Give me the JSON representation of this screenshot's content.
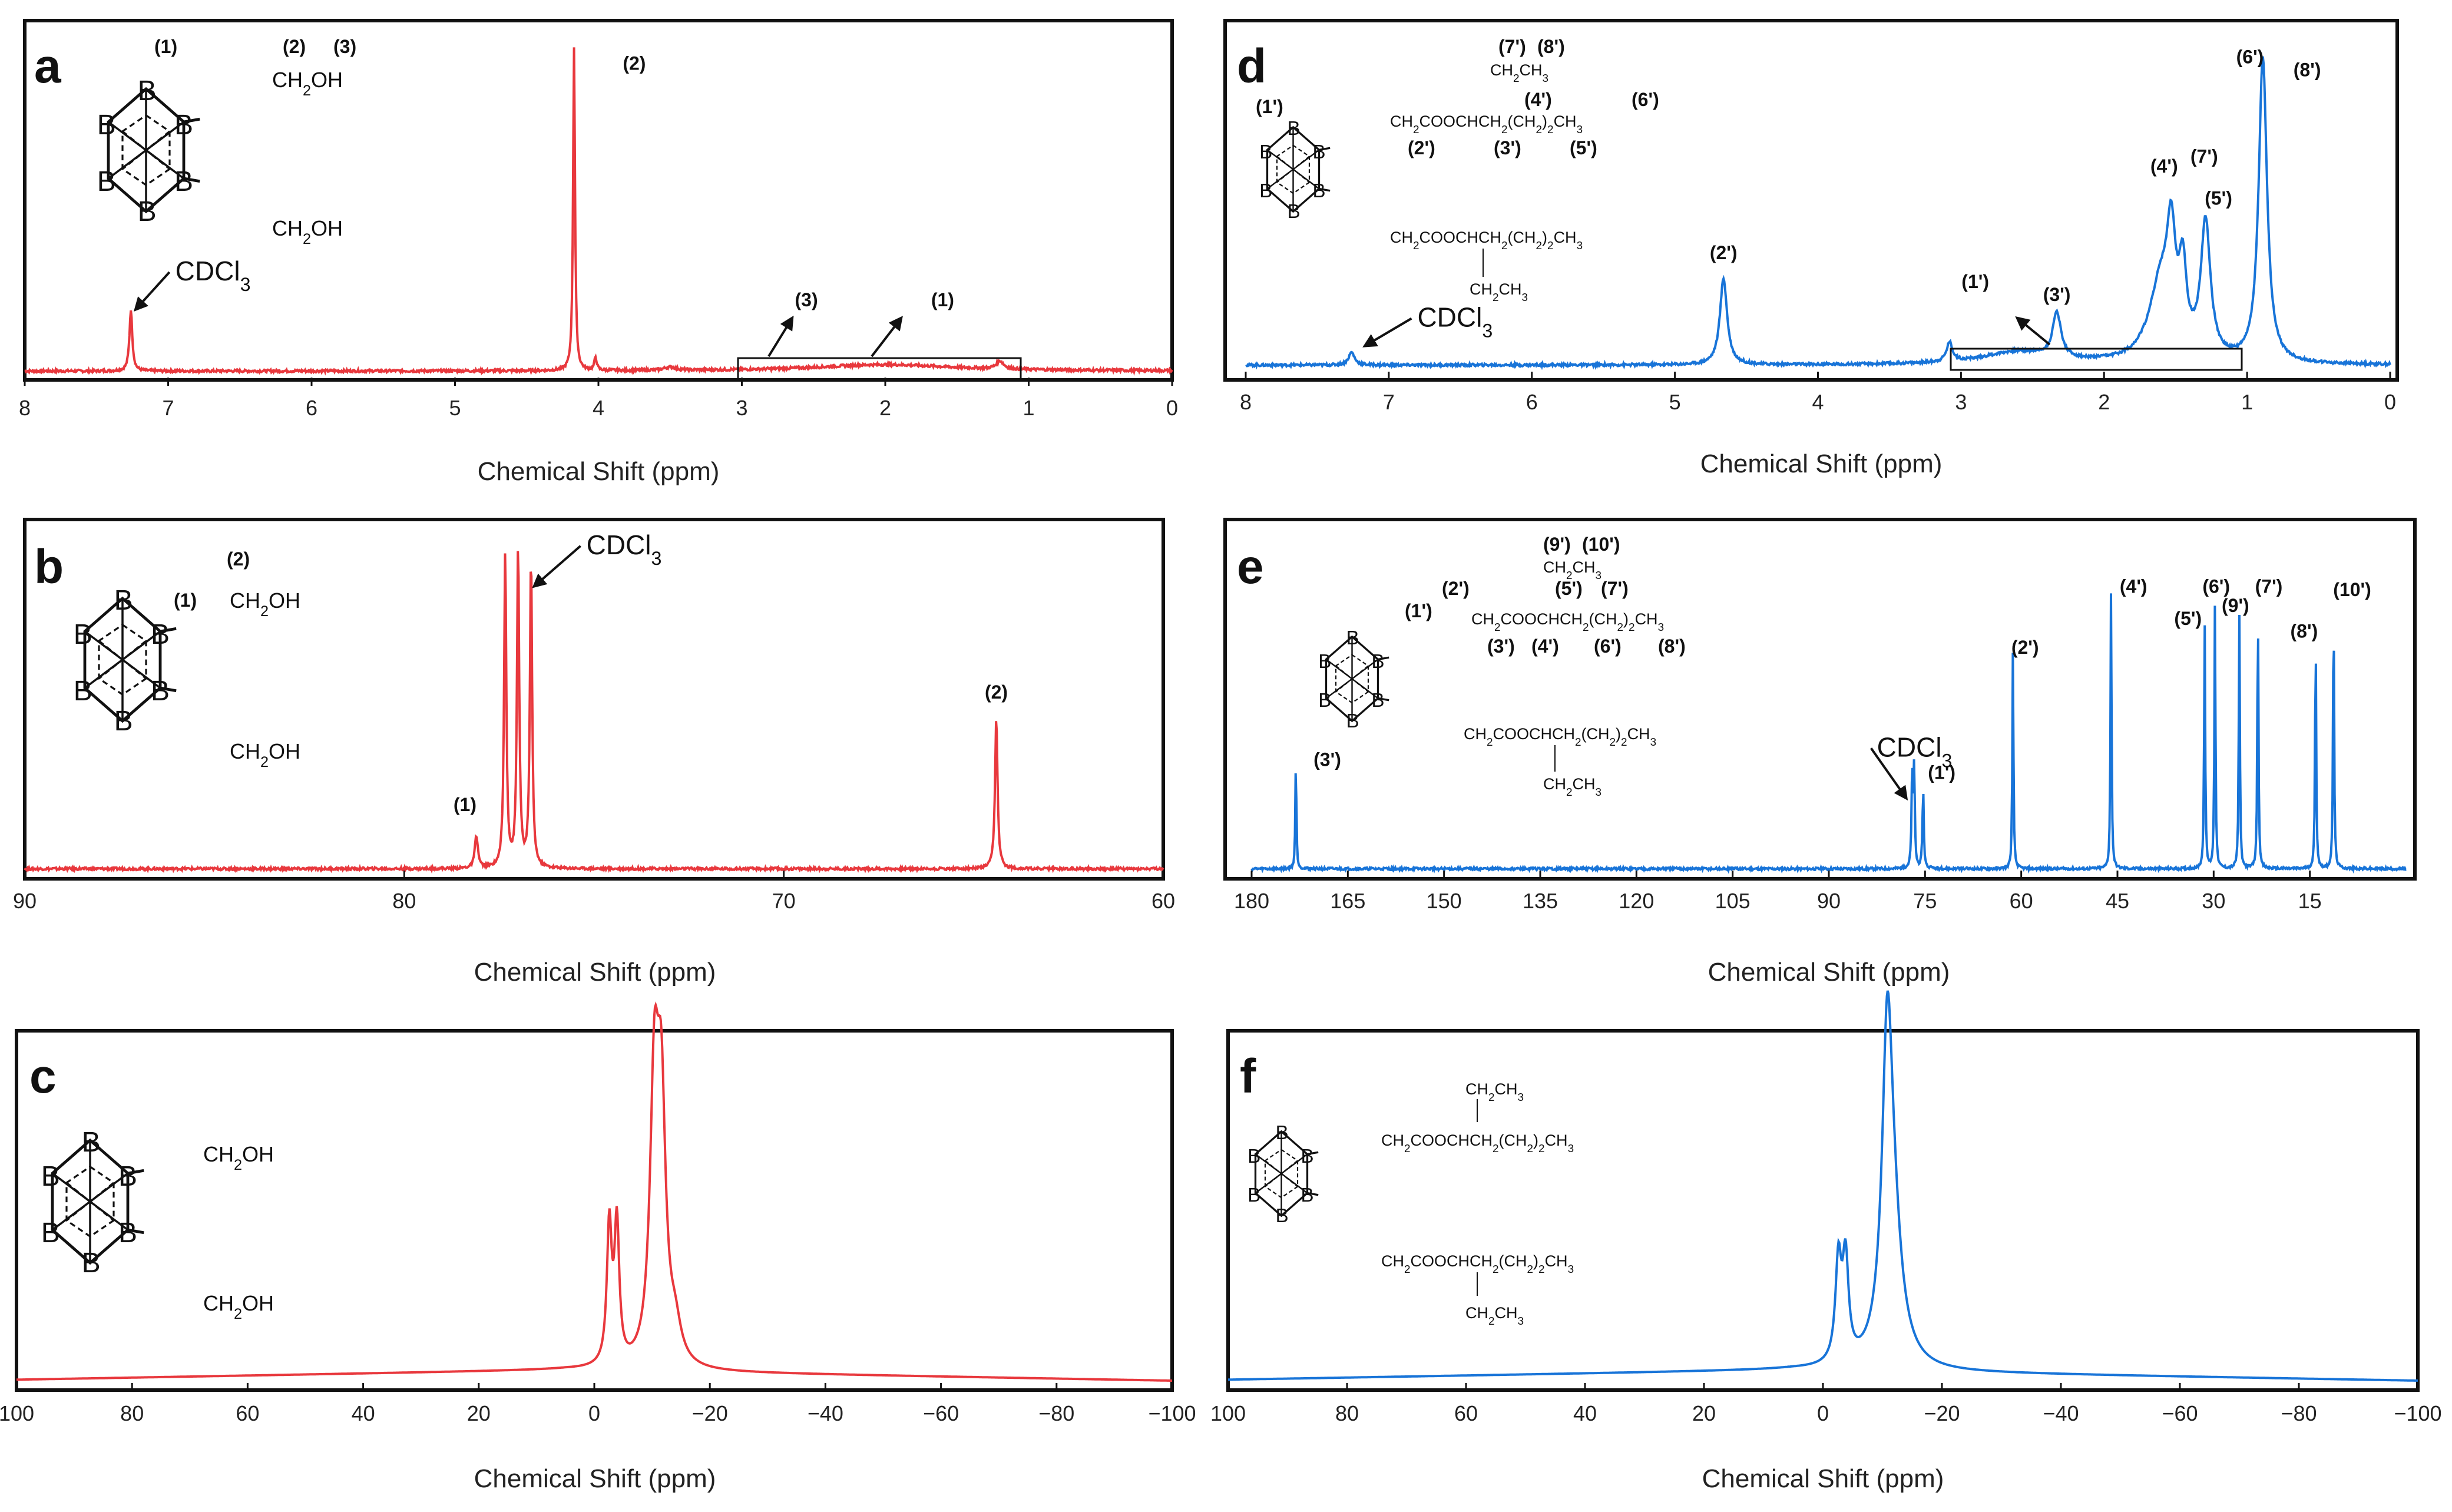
{
  "figure": {
    "axis_title": "Chemical Shift (ppm)"
  },
  "chart_data": [
    {
      "id": "a",
      "letter": "a",
      "type": "line",
      "color": "#e8383d",
      "title": "",
      "xlabel": "Chemical Shift (ppm)",
      "ylabel": "",
      "xlim": [
        8,
        0
      ],
      "ticks": [
        8,
        7,
        6,
        5,
        4,
        3,
        2,
        1,
        0
      ],
      "peaks": [
        {
          "shift": 7.26,
          "height": 0.19,
          "width": 0.012
        },
        {
          "shift": 4.17,
          "height": 1.0,
          "width": 0.008
        },
        {
          "shift": 4.02,
          "height": 0.04,
          "width": 0.01
        },
        {
          "shift": 3.5,
          "height": 0.01,
          "width": 0.05
        },
        {
          "shift": 2.0,
          "height": 0.02,
          "width": 0.6
        },
        {
          "shift": 1.2,
          "height": 0.025,
          "width": 0.03
        }
      ],
      "labels": [
        {
          "text": "(2)",
          "shift": 3.75,
          "h": 0.93
        },
        {
          "text": "(3)",
          "shift": 2.55,
          "h": 0.2
        },
        {
          "text": "(1)",
          "shift": 1.6,
          "h": 0.2
        }
      ],
      "solvent": {
        "text": "CDCl3",
        "shift": 6.95,
        "h": 0.28,
        "tail_shift": 7.26,
        "tail_h": 0.19
      }
    },
    {
      "id": "b",
      "letter": "b",
      "type": "line",
      "color": "#e8383d",
      "title": "",
      "xlabel": "Chemical Shift (ppm)",
      "ylabel": "",
      "xlim": [
        90,
        60
      ],
      "ticks": [
        90,
        80,
        70,
        60
      ],
      "peaks": [
        {
          "shift": 78.1,
          "height": 0.1,
          "width": 0.05
        },
        {
          "shift": 77.34,
          "height": 0.98,
          "width": 0.035
        },
        {
          "shift": 77.0,
          "height": 1.0,
          "width": 0.035
        },
        {
          "shift": 76.66,
          "height": 0.97,
          "width": 0.035
        },
        {
          "shift": 64.4,
          "height": 0.47,
          "width": 0.04
        }
      ],
      "labels": [
        {
          "text": "(1)",
          "shift": 78.4,
          "h": 0.18
        },
        {
          "text": "(2)",
          "shift": 64.4,
          "h": 0.53
        }
      ],
      "solvent": {
        "text": "CDCl3",
        "shift": 75.2,
        "h": 0.98,
        "tail_shift": 76.7,
        "tail_h": 0.88
      }
    },
    {
      "id": "c",
      "letter": "c",
      "type": "line",
      "color": "#e8383d",
      "title": "",
      "xlabel": "Chemical Shift (ppm)",
      "ylabel": "",
      "xlim": [
        100,
        -100
      ],
      "ticks": [
        100,
        80,
        60,
        40,
        20,
        0,
        -20,
        -40,
        -60,
        -80,
        -100
      ],
      "peaks": [
        {
          "shift": -2.6,
          "height": 0.43,
          "width": 0.5
        },
        {
          "shift": -3.9,
          "height": 0.43,
          "width": 0.5
        },
        {
          "shift": -10.4,
          "height": 0.83,
          "width": 0.9
        },
        {
          "shift": -11.6,
          "height": 0.75,
          "width": 0.9
        },
        {
          "shift": -14.0,
          "height": 0.1,
          "width": 1.2
        }
      ],
      "labels": []
    },
    {
      "id": "d",
      "letter": "d",
      "type": "line",
      "color": "#1874d8",
      "title": "",
      "xlabel": "Chemical Shift (ppm)",
      "ylabel": "",
      "xlim": [
        8,
        0
      ],
      "ticks": [
        8,
        7,
        6,
        5,
        4,
        3,
        2,
        1,
        0
      ],
      "peaks": [
        {
          "shift": 7.26,
          "height": 0.04,
          "width": 0.025
        },
        {
          "shift": 4.66,
          "height": 0.27,
          "width": 0.03
        },
        {
          "shift": 3.08,
          "height": 0.06,
          "width": 0.025
        },
        {
          "shift": 2.6,
          "height": 0.04,
          "width": 0.3
        },
        {
          "shift": 2.33,
          "height": 0.14,
          "width": 0.035
        },
        {
          "shift": 1.6,
          "height": 0.25,
          "width": 0.1
        },
        {
          "shift": 1.53,
          "height": 0.3,
          "width": 0.035
        },
        {
          "shift": 1.45,
          "height": 0.24,
          "width": 0.03
        },
        {
          "shift": 1.29,
          "height": 0.42,
          "width": 0.04
        },
        {
          "shift": 0.89,
          "height": 0.95,
          "width": 0.035
        }
      ],
      "labels": [
        {
          "text": "(2')",
          "shift": 4.66,
          "h": 0.33
        },
        {
          "text": "(1')",
          "shift": 2.9,
          "h": 0.24
        },
        {
          "text": "(3')",
          "shift": 2.33,
          "h": 0.2
        },
        {
          "text": "(4')",
          "shift": 1.58,
          "h": 0.6
        },
        {
          "text": "(7')",
          "shift": 1.3,
          "h": 0.63
        },
        {
          "text": "(5')",
          "shift": 1.2,
          "h": 0.5
        },
        {
          "text": "(6')",
          "shift": 0.98,
          "h": 0.94
        },
        {
          "text": "(8')",
          "shift": 0.58,
          "h": 0.9
        }
      ],
      "solvent": {
        "text": "CDCl3",
        "shift": 6.8,
        "h": 0.12,
        "tail_shift": 7.2,
        "tail_h": 0.06
      }
    },
    {
      "id": "e",
      "letter": "e",
      "type": "line",
      "color": "#1874d8",
      "title": "",
      "xlabel": "Chemical Shift (ppm)",
      "ylabel": "",
      "xlim": [
        180,
        0
      ],
      "ticks": [
        180,
        165,
        150,
        135,
        120,
        105,
        90,
        75,
        60,
        45,
        30,
        15
      ],
      "peaks": [
        {
          "shift": 173.1,
          "height": 0.34,
          "width": 0.1
        },
        {
          "shift": 77.0,
          "height": 0.3,
          "width": 0.12
        },
        {
          "shift": 76.7,
          "height": 0.3,
          "width": 0.12
        },
        {
          "shift": 75.3,
          "height": 0.25,
          "width": 0.12
        },
        {
          "shift": 61.3,
          "height": 0.68,
          "width": 0.1
        },
        {
          "shift": 46.0,
          "height": 0.87,
          "width": 0.1
        },
        {
          "shift": 31.4,
          "height": 0.77,
          "width": 0.1
        },
        {
          "shift": 29.8,
          "height": 0.83,
          "width": 0.1
        },
        {
          "shift": 26.0,
          "height": 0.8,
          "width": 0.1
        },
        {
          "shift": 23.1,
          "height": 0.82,
          "width": 0.1
        },
        {
          "shift": 14.1,
          "height": 0.73,
          "width": 0.1
        },
        {
          "shift": 11.3,
          "height": 0.85,
          "width": 0.1
        }
      ],
      "labels": [
        {
          "text": "(3')",
          "shift": 168.2,
          "h": 0.32
        },
        {
          "text": "(1')",
          "shift": 72.4,
          "h": 0.28
        },
        {
          "text": "(2')",
          "shift": 59.4,
          "h": 0.67
        },
        {
          "text": "(4')",
          "shift": 42.5,
          "h": 0.86
        },
        {
          "text": "(5')",
          "shift": 34.0,
          "h": 0.76
        },
        {
          "text": "(6')",
          "shift": 29.6,
          "h": 0.86
        },
        {
          "text": "(9')",
          "shift": 26.6,
          "h": 0.8
        },
        {
          "text": "(7')",
          "shift": 21.4,
          "h": 0.86
        },
        {
          "text": "(8')",
          "shift": 15.9,
          "h": 0.72
        },
        {
          "text": "(10')",
          "shift": 8.4,
          "h": 0.85
        }
      ],
      "solvent": {
        "text": "CDCl3",
        "shift": 82.5,
        "h": 0.35,
        "tail_shift": 77.2,
        "tail_h": 0.22
      }
    },
    {
      "id": "f",
      "letter": "f",
      "type": "line",
      "color": "#1874d8",
      "title": "",
      "xlabel": "Chemical Shift (ppm)",
      "ylabel": "",
      "xlim": [
        100,
        -100
      ],
      "ticks": [
        100,
        80,
        60,
        40,
        20,
        0,
        -20,
        -40,
        -60,
        -80,
        -100
      ],
      "peaks": [
        {
          "shift": -2.6,
          "height": 0.31,
          "width": 0.6
        },
        {
          "shift": -3.8,
          "height": 0.31,
          "width": 0.6
        },
        {
          "shift": -10.8,
          "height": 0.8,
          "width": 1.0
        },
        {
          "shift": -11.6,
          "height": 0.45,
          "width": 1.8
        }
      ],
      "labels": []
    }
  ],
  "structures": {
    "a": {
      "labels": [
        "(1)",
        "(2)",
        "(3)"
      ],
      "groups": [
        "CH2OH",
        "CH2OH"
      ]
    },
    "b": {
      "labels": [
        "(2)",
        "(1)"
      ],
      "groups": [
        "CH2OH",
        "CH2OH"
      ]
    },
    "c": {
      "groups": [
        "CH2OH",
        "CH2OH"
      ]
    },
    "d": {
      "labels": [
        "(7')",
        "(8')",
        "(1')",
        "(4')",
        "(6')",
        "(2')",
        "(3')",
        "(5')"
      ],
      "lines": [
        "CH2CH3",
        "CH2COOCHCH2(CH2)2CH3",
        "CH2COOCHCH2(CH2)2CH3",
        "CH2CH3"
      ]
    },
    "e": {
      "labels": [
        "(9')",
        "(10')",
        "(2')",
        "(5')",
        "(7')",
        "(1')",
        "(3')",
        "(4')",
        "(6')",
        "(8')"
      ],
      "lines": [
        "CH2CH3",
        "CH2COOCHCH2(CH2)2CH3",
        "CH2COOCHCH2(CH2)2CH3",
        "CH2CH3"
      ]
    },
    "f": {
      "lines": [
        "CH2CH3",
        "CH2COOCHCH2(CH2)2CH3",
        "CH2COOCHCH2(CH2)2CH3",
        "CH2CH3"
      ]
    },
    "boron_atom": "B"
  }
}
